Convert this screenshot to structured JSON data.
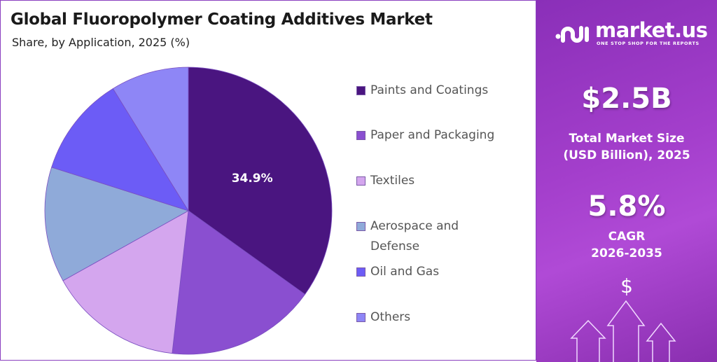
{
  "title": "Global Fluoropolymer Coating Additives Market",
  "subtitle": "Share, by Application, 2025 (%)",
  "chart_data": {
    "type": "pie",
    "title": "Global Fluoropolymer Coating Additives Market",
    "subtitle": "Share, by Application, 2025 (%)",
    "legend_placement": "right",
    "slices": [
      {
        "name": "Paints and Coatings",
        "value": 34.9,
        "color": "#4a1580",
        "label": "34.9%"
      },
      {
        "name": "Paper and Packaging",
        "value": 16.9,
        "color": "#8a4fd0"
      },
      {
        "name": "Textiles",
        "value": 15.1,
        "color": "#d4a6ee"
      },
      {
        "name": "Aerospace and Defense",
        "value": 13.0,
        "color": "#8faad9"
      },
      {
        "name": "Oil and Gas",
        "value": 11.3,
        "color": "#6c5cf6"
      },
      {
        "name": "Others",
        "value": 8.8,
        "color": "#8e86f6"
      }
    ]
  },
  "legend": [
    {
      "line1": "Paints and Coatings"
    },
    {
      "line1": "Paper and Packaging"
    },
    {
      "line1": "Textiles"
    },
    {
      "line1": "Aerospace and",
      "line2": "Defense"
    },
    {
      "line1": "Oil and Gas"
    },
    {
      "line1": "Others"
    }
  ],
  "sidebar": {
    "brand": "market.us",
    "tagline": "ONE STOP SHOP FOR THE REPORTS",
    "market_size": "$2.5B",
    "market_size_label1": "Total Market Size",
    "market_size_label2": "(USD Billion), 2025",
    "cagr": "5.8%",
    "cagr_label1": "CAGR",
    "cagr_label2": "2026-2035",
    "dollar_symbol": "$"
  }
}
